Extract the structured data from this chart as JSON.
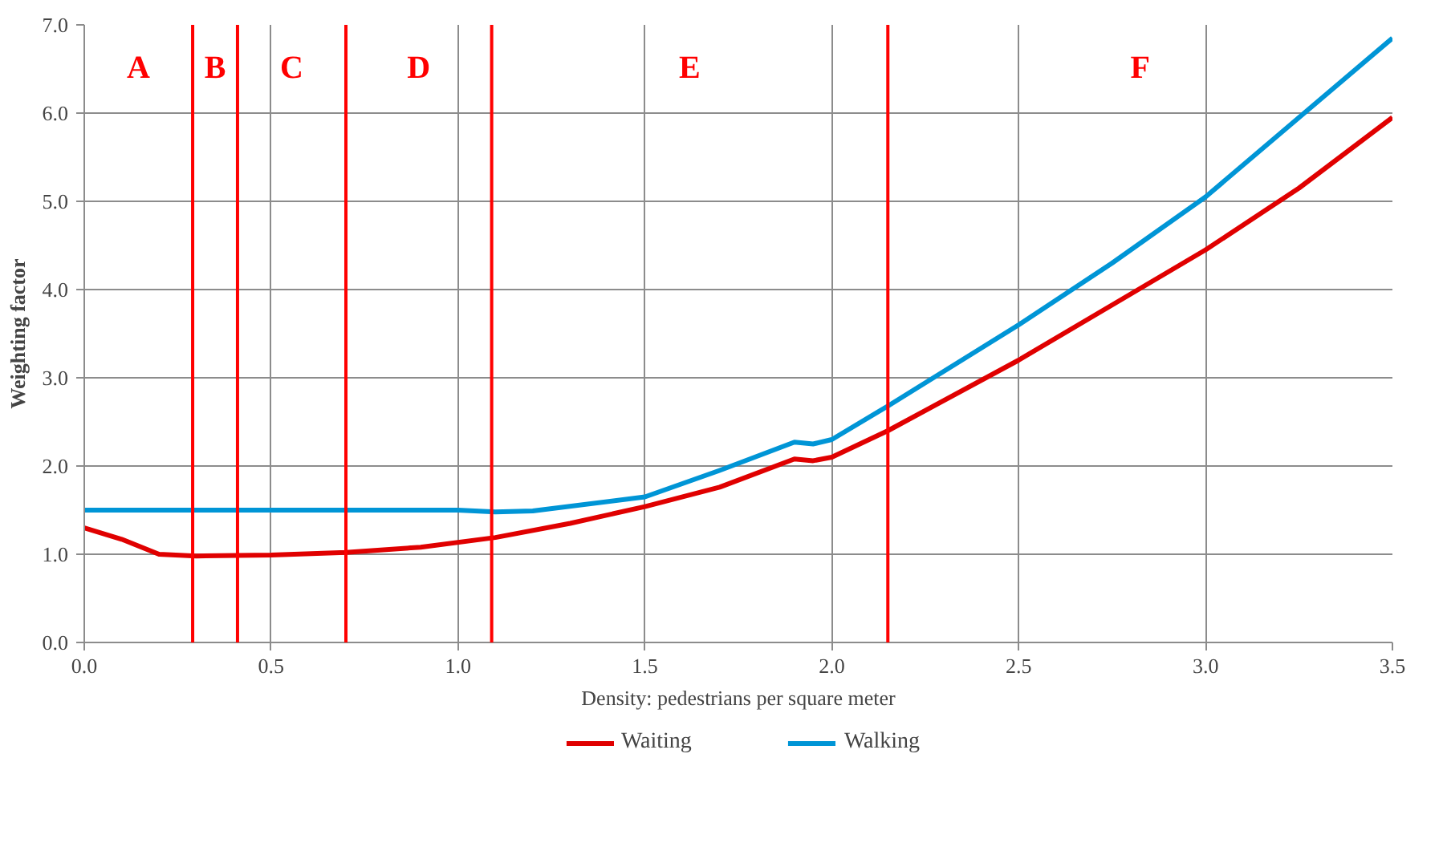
{
  "chart_data": {
    "type": "line",
    "xlabel": "Density: pedestrians per square meter",
    "ylabel": "Weighting factor",
    "xlim": [
      0,
      3.5
    ],
    "ylim": [
      0,
      7
    ],
    "xticks": [
      {
        "value": 0,
        "label": "0.0"
      },
      0.5,
      {
        "value": 1,
        "label": "1.0"
      },
      1.5,
      {
        "value": 2,
        "label": "2.0"
      },
      2.5,
      {
        "value": 3,
        "label": "3.0"
      },
      3.5
    ],
    "yticks": [
      {
        "value": 0,
        "label": "0.0"
      },
      {
        "value": 1,
        "label": "1.0"
      },
      {
        "value": 2,
        "label": "2.0"
      },
      {
        "value": 3,
        "label": "3.0"
      },
      {
        "value": 4,
        "label": "4.0"
      },
      {
        "value": 5,
        "label": "5.0"
      },
      {
        "value": 6,
        "label": "6.0"
      },
      {
        "value": 7,
        "label": "7.0"
      }
    ],
    "grid": true,
    "legend": "bottom",
    "series": [
      {
        "name": "Waiting",
        "color": "#e00000",
        "x": [
          0,
          0.1,
          0.2,
          0.3,
          0.5,
          0.7,
          0.9,
          1.1,
          1.3,
          1.5,
          1.7,
          1.9,
          1.95,
          2.0,
          2.15,
          2.5,
          2.8,
          3.0,
          3.25,
          3.5
        ],
        "values": [
          1.3,
          1.17,
          1.0,
          0.98,
          0.99,
          1.02,
          1.08,
          1.19,
          1.35,
          1.54,
          1.76,
          2.08,
          2.06,
          2.1,
          2.4,
          3.2,
          3.95,
          4.45,
          5.15,
          5.95
        ]
      },
      {
        "name": "Walking",
        "color": "#0095d6",
        "x": [
          0,
          0.5,
          1.0,
          1.1,
          1.2,
          1.5,
          1.7,
          1.9,
          1.95,
          2.0,
          2.15,
          2.5,
          2.75,
          3.0,
          3.25,
          3.5
        ],
        "values": [
          1.5,
          1.5,
          1.5,
          1.48,
          1.49,
          1.65,
          1.95,
          2.27,
          2.25,
          2.3,
          2.68,
          3.6,
          4.3,
          5.05,
          5.95,
          6.85
        ]
      }
    ],
    "ref_lines": [
      {
        "axis": "x",
        "value": 0.29,
        "color": "#ff0000"
      },
      {
        "axis": "x",
        "value": 0.41,
        "color": "#ff0000"
      },
      {
        "axis": "x",
        "value": 0.7,
        "color": "#ff0000"
      },
      {
        "axis": "x",
        "value": 1.09,
        "color": "#ff0000"
      },
      {
        "axis": "x",
        "value": 2.15,
        "color": "#ff0000"
      }
    ],
    "annotations": [
      "A",
      "B",
      "C",
      "D",
      "E",
      "F"
    ]
  }
}
